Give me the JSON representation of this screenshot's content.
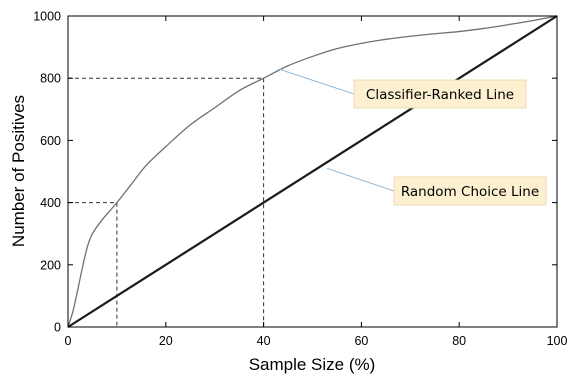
{
  "chart_data": {
    "type": "line",
    "xlabel": "Sample Size (%)",
    "ylabel": "Number of Positives",
    "xlim": [
      0,
      100
    ],
    "ylim": [
      0,
      1000
    ],
    "x_ticks": [
      0,
      20,
      40,
      60,
      80,
      100
    ],
    "y_ticks": [
      0,
      200,
      400,
      600,
      800,
      1000
    ],
    "grid": false,
    "series": [
      {
        "name": "Classifier-Ranked Line",
        "color": "#707070",
        "x": [
          0,
          1,
          2,
          3,
          4,
          5,
          7,
          10,
          13,
          16,
          20,
          25,
          30,
          35,
          40,
          45,
          50,
          55,
          60,
          65,
          70,
          75,
          80,
          85,
          90,
          95,
          100
        ],
        "y": [
          0,
          50,
          120,
          195,
          260,
          300,
          345,
          400,
          460,
          520,
          580,
          650,
          705,
          760,
          800,
          840,
          870,
          895,
          912,
          925,
          935,
          943,
          950,
          960,
          972,
          985,
          1000
        ]
      },
      {
        "name": "Random Choice Line",
        "color": "#1a1a1a",
        "x": [
          0,
          100
        ],
        "y": [
          0,
          1000
        ]
      }
    ],
    "reference_lines": [
      {
        "x": 10,
        "y": 400
      },
      {
        "x": 40,
        "y": 800
      }
    ],
    "annotations": [
      {
        "text": "Classifier-Ranked Line",
        "points_to": {
          "x": 43,
          "y": 830
        },
        "fill": "#fdf0d0",
        "border": "#e8d6a8"
      },
      {
        "text": "Random Choice Line",
        "points_to": {
          "x": 53,
          "y": 510
        },
        "fill": "#fdf0d0",
        "border": "#e8d6a8"
      }
    ]
  }
}
